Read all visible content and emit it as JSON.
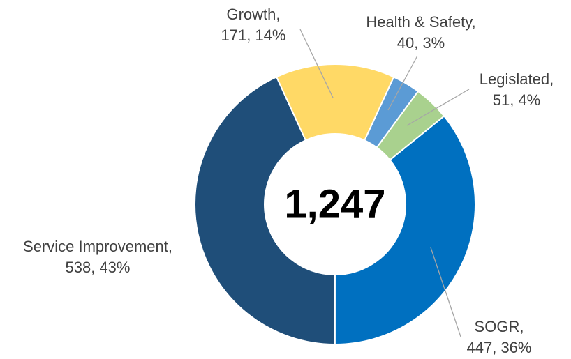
{
  "chart_data": {
    "type": "donut",
    "categories": [
      "Growth,",
      "Health & Safety,",
      "Legislated,",
      "SOGR,",
      "Service Improvement,"
    ],
    "values": [
      171,
      40,
      51,
      447,
      538
    ],
    "value_labels": [
      "171, 14%",
      "40, 3%",
      "51, 4%",
      "447, 36%",
      "538, 43%"
    ],
    "colors": [
      "#FFD966",
      "#5B9BD5",
      "#A9D18E",
      "#0070C0",
      "#1F4E79"
    ],
    "center_label": "1,247"
  }
}
